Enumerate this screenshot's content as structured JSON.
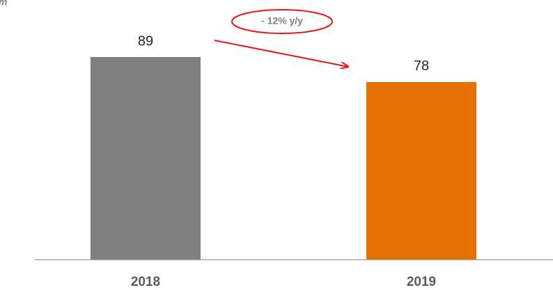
{
  "chart_data": {
    "type": "bar",
    "subtitle": "m",
    "categories": [
      "2018",
      "2019"
    ],
    "values": [
      89,
      78
    ],
    "colors": [
      "#808080",
      "#e57200"
    ],
    "annotation": "- 12% y/y"
  }
}
